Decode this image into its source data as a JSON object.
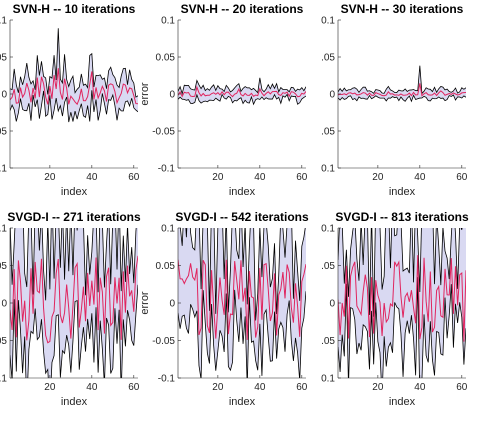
{
  "colors": {
    "band_fill": "#d9d9f2",
    "band_edge": "#000000",
    "mean_line": "#e0245e",
    "axis": "#262626"
  },
  "chart_data": [
    {
      "type": "line",
      "title": "SVN-H -- 10 iterations",
      "xlabel": "index",
      "ylabel": "",
      "xlim": [
        1,
        62
      ],
      "ylim": [
        -0.1,
        0.1
      ],
      "x_ticks": [
        20,
        40,
        60
      ],
      "y_ticks": [
        -0.1,
        -0.05,
        0,
        0.05,
        0.1
      ],
      "x_tick_labels": [
        "20",
        "40",
        "60"
      ],
      "y_tick_labels": [
        "0.1",
        ".05",
        "0",
        ".05",
        "0.1"
      ],
      "grid": false,
      "band_amplitude": 0.05,
      "band_width": 0.022,
      "seed": 11,
      "spikes": [
        [
          9,
          0.045
        ],
        [
          14,
          0.05
        ],
        [
          16,
          0.035
        ],
        [
          22,
          0.045
        ],
        [
          24,
          0.09
        ],
        [
          27,
          0.055
        ],
        [
          39,
          0.065
        ],
        [
          40,
          0.04
        ],
        [
          55,
          0.035
        ]
      ]
    },
    {
      "type": "line",
      "title": "SVN-H -- 20 iterations",
      "xlabel": "index",
      "ylabel": "error",
      "xlim": [
        1,
        62
      ],
      "ylim": [
        -0.1,
        0.1
      ],
      "x_ticks": [
        20,
        40,
        60
      ],
      "y_ticks": [
        -0.1,
        -0.05,
        0,
        0.05,
        0.1
      ],
      "x_tick_labels": [
        "20",
        "40",
        "60"
      ],
      "y_tick_labels": [
        "-0.1",
        "-0.05",
        "0",
        "0.05",
        "0.1"
      ],
      "grid": false,
      "band_amplitude": 0.012,
      "band_width": 0.008,
      "seed": 22,
      "spikes": [
        [
          40,
          0.025
        ],
        [
          10,
          0.015
        ],
        [
          30,
          0.012
        ]
      ]
    },
    {
      "type": "line",
      "title": "SVN-H -- 30 iterations",
      "xlabel": "index",
      "ylabel": "",
      "xlim": [
        1,
        62
      ],
      "ylim": [
        -0.1,
        0.1
      ],
      "x_ticks": [
        20,
        40,
        60
      ],
      "y_ticks": [
        -0.1,
        -0.05,
        0,
        0.05,
        0.1
      ],
      "x_tick_labels": [
        "20",
        "40",
        "60"
      ],
      "y_tick_labels": [
        "0.1",
        ".05",
        "0",
        ".05",
        "0.1"
      ],
      "grid": false,
      "band_amplitude": 0.008,
      "band_width": 0.006,
      "seed": 33,
      "spikes": [
        [
          40,
          0.04
        ],
        [
          25,
          0.012
        ],
        [
          50,
          0.01
        ]
      ]
    },
    {
      "type": "line",
      "title": "SVGD-I -- 271 iterations",
      "xlabel": "index",
      "ylabel": "",
      "xlim": [
        1,
        62
      ],
      "ylim": [
        -0.1,
        0.1
      ],
      "x_ticks": [
        20,
        40,
        60
      ],
      "y_ticks": [
        -0.1,
        -0.05,
        0,
        0.05,
        0.1
      ],
      "x_tick_labels": [
        "20",
        "40",
        "60"
      ],
      "y_tick_labels": [
        "0.1",
        ".05",
        "0",
        ".05",
        "0.1"
      ],
      "grid": false,
      "band_amplitude": 0.14,
      "band_width": 0.04,
      "seed": 271,
      "spikes": []
    },
    {
      "type": "line",
      "title": "SVGD-I -- 542 iterations",
      "xlabel": "index",
      "ylabel": "error",
      "xlim": [
        1,
        62
      ],
      "ylim": [
        -0.1,
        0.1
      ],
      "x_ticks": [
        20,
        40,
        60
      ],
      "y_ticks": [
        -0.1,
        -0.05,
        0,
        0.05,
        0.1
      ],
      "x_tick_labels": [
        "20",
        "40",
        "60"
      ],
      "y_tick_labels": [
        "-0.1",
        "-0.05",
        "0",
        "0.05",
        "0.1"
      ],
      "grid": false,
      "band_amplitude": 0.13,
      "band_width": 0.035,
      "seed": 542,
      "spikes": []
    },
    {
      "type": "line",
      "title": "SVGD-I -- 813 iterations",
      "xlabel": "index",
      "ylabel": "",
      "xlim": [
        1,
        62
      ],
      "ylim": [
        -0.1,
        0.1
      ],
      "x_ticks": [
        20,
        40,
        60
      ],
      "y_ticks": [
        -0.1,
        -0.05,
        0,
        0.05,
        0.1
      ],
      "x_tick_labels": [
        "20",
        "40",
        "60"
      ],
      "y_tick_labels": [
        "0.1",
        ".05",
        "0",
        ".05",
        "0.1"
      ],
      "grid": false,
      "band_amplitude": 0.13,
      "band_width": 0.035,
      "seed": 813,
      "spikes": []
    }
  ]
}
